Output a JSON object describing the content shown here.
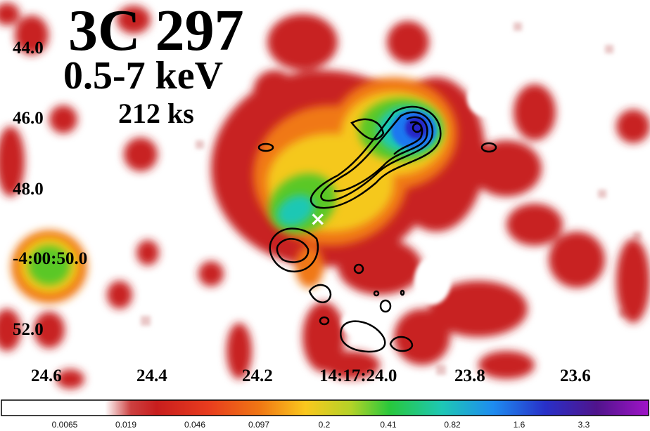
{
  "figure": {
    "title": "3C 297",
    "band": "0.5-7 keV",
    "exposure": "212 ks"
  },
  "axes": {
    "dec_ticks": [
      "44.0",
      "46.0",
      "48.0",
      "-4:00:50.0",
      "52.0"
    ],
    "ra_ticks": [
      "24.6",
      "24.4",
      "24.2",
      "14:17:24.0",
      "23.8",
      "23.6"
    ]
  },
  "colorbar": {
    "ticks": [
      "0.0065",
      "0.019",
      "0.046",
      "0.097",
      "0.2",
      "0.41",
      "0.82",
      "1.6",
      "3.3"
    ],
    "colors": [
      "#ffffff",
      "#d4a0a0",
      "#c81e1e",
      "#e8321e",
      "#f07814",
      "#fac81e",
      "#aad228",
      "#28c83c",
      "#1ec8a0",
      "#1e8cf0",
      "#2832c8",
      "#5a14a0",
      "#9614b4"
    ]
  },
  "markers": {
    "core_symbol": "×",
    "core_color": "#ffffff"
  }
}
